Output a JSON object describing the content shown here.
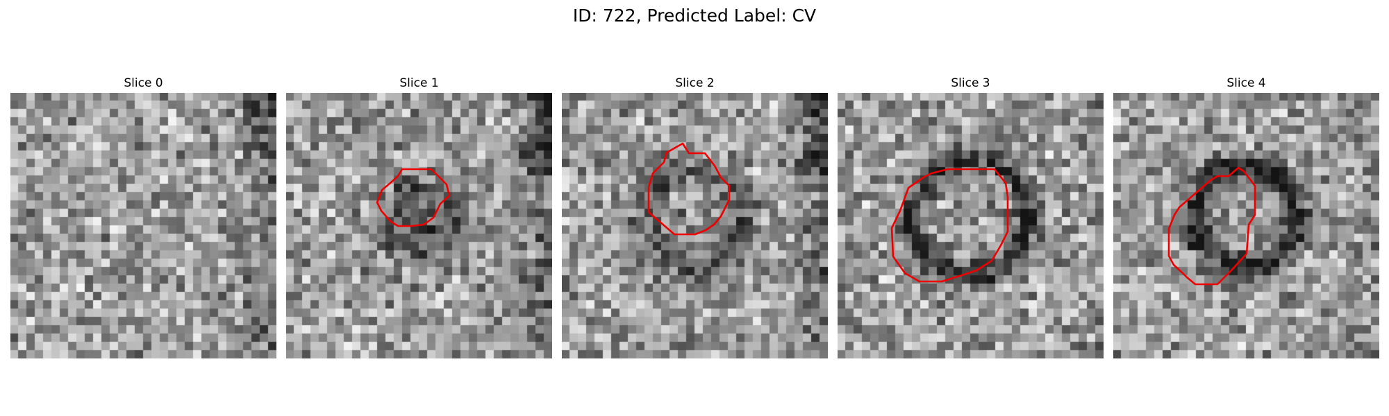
{
  "figure": {
    "suptitle": "ID: 722, Predicted Label: CV",
    "contour_color": "#ee0000",
    "colormap": "gray",
    "panels": [
      {
        "title": "Slice 0",
        "has_contour": false,
        "seed": 11,
        "dark_blob": 0.0,
        "ring": 0.0,
        "ring_radius": 0,
        "right_edge_dark": 0.35
      },
      {
        "title": "Slice 1",
        "has_contour": true,
        "seed": 23,
        "dark_blob": 0.35,
        "ring": 0.1,
        "ring_radius": 4,
        "right_edge_dark": 0.45
      },
      {
        "title": "Slice 2",
        "has_contour": true,
        "seed": 37,
        "dark_blob": 0.08,
        "ring": 0.25,
        "ring_radius": 6,
        "right_edge_dark": 0.45
      },
      {
        "title": "Slice 3",
        "has_contour": true,
        "seed": 41,
        "dark_blob": 0.05,
        "ring": 0.4,
        "ring_radius": 7,
        "right_edge_dark": 0.15
      },
      {
        "title": "Slice 4",
        "has_contour": true,
        "seed": 53,
        "dark_blob": 0.0,
        "ring": 0.45,
        "ring_radius": 6,
        "right_edge_dark": 0.1
      }
    ]
  }
}
